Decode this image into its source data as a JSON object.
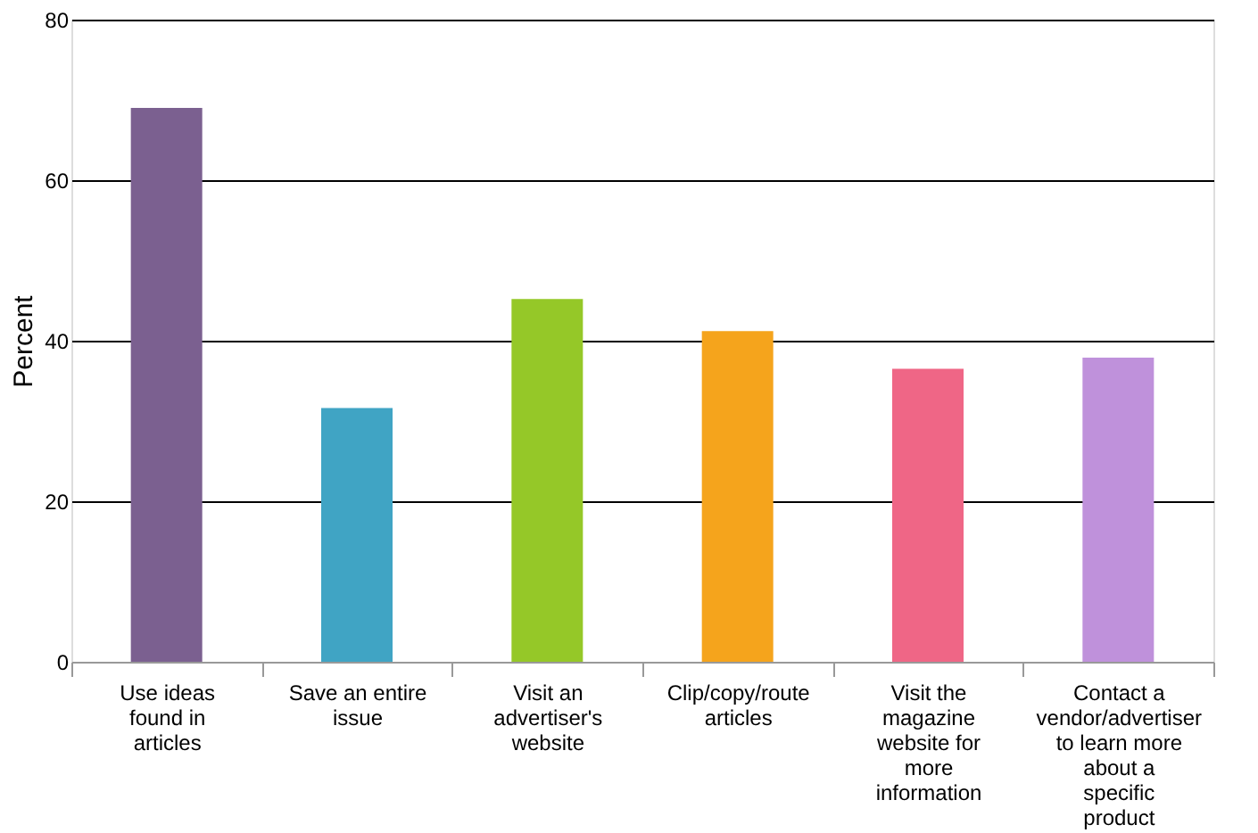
{
  "chart_data": {
    "type": "bar",
    "ylabel": "Percent",
    "categories": [
      "Use ideas found in articles",
      "Save an entire issue",
      "Visit an advertiser's website",
      "Clip/copy/route articles",
      "Visit the magazine website for more information",
      "Contact a vendor/advertiser to learn more about a specific product"
    ],
    "values": [
      69,
      31.6,
      45.2,
      41.2,
      36.5,
      37.9
    ],
    "colors": [
      "#7b6090",
      "#40a4c4",
      "#95c828",
      "#f5a41c",
      "#ef6686",
      "#bf91db"
    ],
    "ylim": [
      0,
      80
    ],
    "yticks": [
      0,
      20,
      40,
      60,
      80
    ],
    "grid": "y",
    "legend": false
  }
}
